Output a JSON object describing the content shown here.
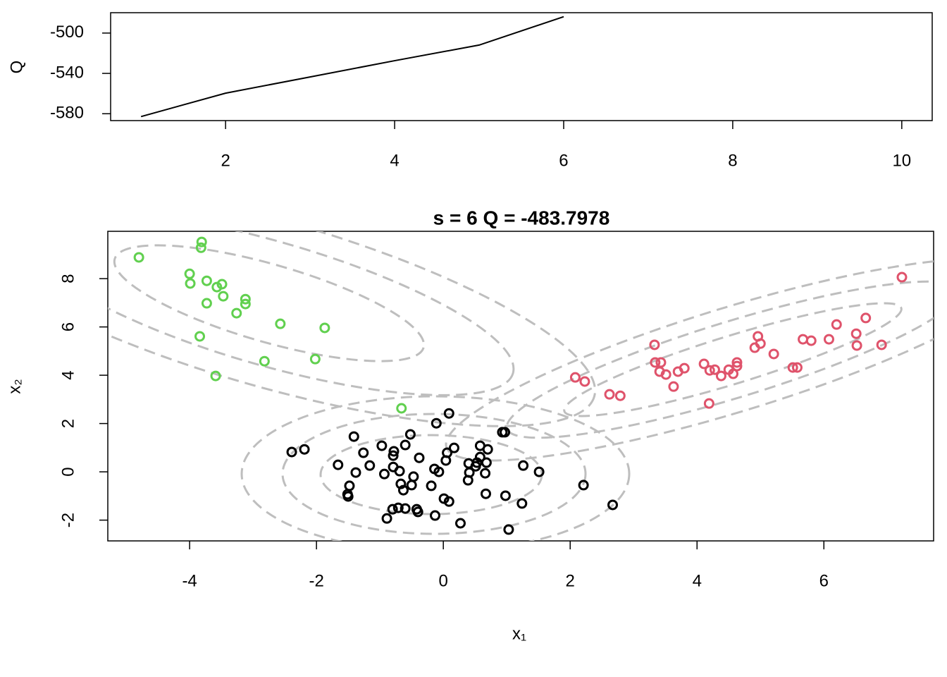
{
  "chart_data": [
    {
      "type": "line",
      "ylabel": "Q",
      "color": "#000000",
      "x": [
        1,
        2,
        3,
        4,
        5,
        6
      ],
      "values": [
        -582.8,
        -559.6,
        -543.5,
        -527.4,
        -511.9,
        -483.8
      ],
      "xlim": [
        0.64,
        10.36
      ],
      "ylim": [
        -586.8,
        -479.8
      ],
      "xticks": [
        2,
        4,
        6,
        8,
        10
      ],
      "yticks": [
        -580,
        -540,
        -500
      ]
    },
    {
      "type": "scatter",
      "title": "s = 6    Q = -483.7978",
      "xlabel": "x₁",
      "ylabel": "x₂",
      "xlim": [
        -5.29,
        7.73
      ],
      "ylim": [
        -2.86,
        9.96
      ],
      "xticks": [
        -4,
        -2,
        0,
        2,
        4,
        6
      ],
      "yticks": [
        -2,
        0,
        2,
        4,
        6,
        8
      ],
      "series": [
        {
          "color": "#000000",
          "x": [
            0.09,
            -0.11,
            -1.41,
            -0.52,
            0.93,
            0.97,
            -2.39,
            -2.19,
            -0.97,
            -1.26,
            -0.78,
            -0.6,
            0.17,
            0.06,
            0.58,
            0.7,
            -0.79,
            -0.38,
            0.04,
            0.58,
            0.53,
            0.4,
            -1.66,
            -1.16,
            -0.79,
            -0.69,
            -0.14,
            -0.07,
            0.51,
            0.68,
            1.26,
            1.51,
            -1.38,
            -0.93,
            -0.47,
            0.41,
            0.39,
            0.66,
            -0.67,
            -0.5,
            -0.19,
            2.21,
            -1.48,
            -1.51,
            -1.5,
            0.67,
            0.98,
            0.01,
            0.09,
            -0.63,
            1.24,
            2.67,
            -0.8,
            -0.71,
            -0.6,
            -0.42,
            -0.4,
            -0.13,
            -0.89,
            0.27,
            1.03
          ],
          "y": [
            2.42,
            2.01,
            1.46,
            1.55,
            1.64,
            1.64,
            0.82,
            0.93,
            1.08,
            0.79,
            0.85,
            1.11,
            0.99,
            0.79,
            1.08,
            0.93,
            0.67,
            0.58,
            0.47,
            0.61,
            0.38,
            0.35,
            0.29,
            0.26,
            0.2,
            0.03,
            0.12,
            0.0,
            0.23,
            0.38,
            0.26,
            0.0,
            -0.03,
            -0.09,
            -0.2,
            -0.03,
            -0.35,
            -0.06,
            -0.5,
            -0.55,
            -0.58,
            -0.55,
            -0.58,
            -0.93,
            -1.02,
            -0.91,
            -0.99,
            -1.11,
            -1.23,
            -0.76,
            -1.31,
            -1.37,
            -1.55,
            -1.49,
            -1.52,
            -1.55,
            -1.66,
            -1.81,
            -1.93,
            -2.13,
            -2.39
          ]
        },
        {
          "color": "#df536b",
          "x": [
            7.23,
            6.66,
            6.2,
            6.51,
            6.08,
            5.67,
            5.8,
            4.96,
            5.0,
            4.91,
            6.52,
            6.91,
            5.21,
            3.33,
            3.34,
            3.43,
            3.41,
            3.51,
            3.7,
            3.8,
            4.11,
            4.2,
            4.28,
            4.38,
            4.5,
            4.57,
            4.63,
            4.63,
            5.51,
            5.58,
            2.08,
            2.23,
            3.63,
            2.62,
            2.79,
            4.19
          ],
          "y": [
            8.06,
            6.37,
            6.1,
            5.72,
            5.49,
            5.49,
            5.43,
            5.61,
            5.31,
            5.14,
            5.23,
            5.26,
            4.88,
            5.26,
            4.53,
            4.53,
            4.15,
            4.03,
            4.15,
            4.29,
            4.47,
            4.2,
            4.23,
            3.97,
            4.23,
            4.06,
            4.53,
            4.38,
            4.32,
            4.32,
            3.91,
            3.74,
            3.53,
            3.21,
            3.15,
            2.83
          ]
        },
        {
          "color": "#61d04f",
          "x": [
            -4.8,
            -3.81,
            -3.82,
            -4.0,
            -3.99,
            -3.73,
            -3.57,
            -3.49,
            -3.47,
            -3.12,
            -3.12,
            -3.73,
            -3.26,
            -2.57,
            -1.87,
            -3.84,
            -3.59,
            -2.82,
            -2.02,
            -0.66
          ],
          "y": [
            8.88,
            9.52,
            9.28,
            8.2,
            7.8,
            7.91,
            7.65,
            7.77,
            7.27,
            7.15,
            6.95,
            6.98,
            6.57,
            6.13,
            5.96,
            5.61,
            3.97,
            4.58,
            4.67,
            2.63
          ]
        }
      ]
    }
  ]
}
